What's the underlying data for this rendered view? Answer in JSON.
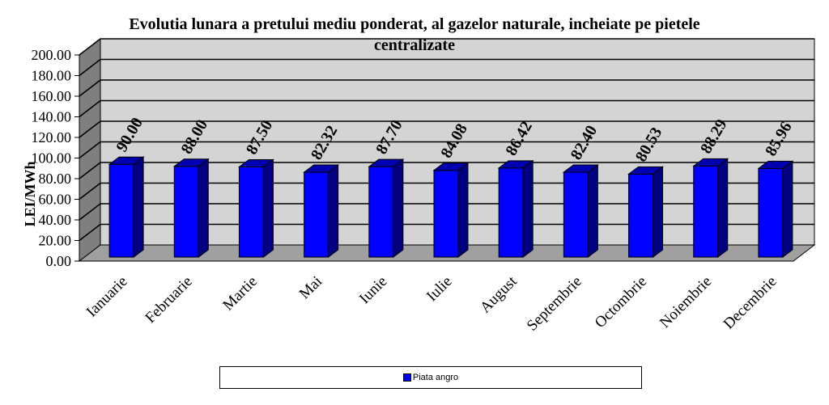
{
  "chart_data": {
    "type": "bar",
    "title": "Evolutia lunara a pretului mediu ponderat, al gazelor naturale, incheiate pe pietele",
    "title_line2": "centralizate",
    "ylabel": "LEI/MWh",
    "xlabel": "",
    "ylim": [
      0,
      200
    ],
    "yticks": [
      "0.00",
      "20.00",
      "40.00",
      "60.00",
      "80.00",
      "100.00",
      "120.00",
      "140.00",
      "160.00",
      "180.00",
      "200.00"
    ],
    "categories": [
      "Ianuarie",
      "Februarie",
      "Martie",
      "Mai",
      "Iunie",
      "Iulie",
      "August",
      "Septembrie",
      "Octombrie",
      "Noiembrie",
      "Decembrie"
    ],
    "series": [
      {
        "name": "Piata angro",
        "values": [
          90.0,
          88.0,
          87.5,
          82.32,
          87.7,
          84.08,
          86.42,
          82.4,
          80.53,
          88.29,
          85.96
        ],
        "labels": [
          "90.00",
          "88.00",
          "87.50",
          "82.32",
          "87.70",
          "84.08",
          "86.42",
          "82.40",
          "80.53",
          "88.29",
          "85.96"
        ]
      }
    ],
    "grid": true,
    "legend": "bottom",
    "colors": {
      "bar_front": "#0000ff",
      "bar_side": "#000080",
      "bar_top": "#0000b0",
      "wall": "#d4d4d4",
      "side_wall": "#7f7f7f",
      "floor": "#a0a0a0"
    }
  }
}
